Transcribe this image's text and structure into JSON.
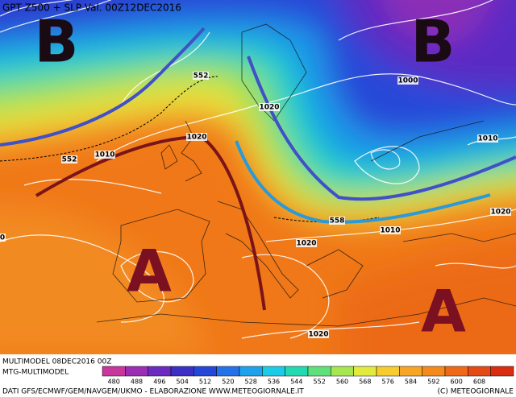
{
  "header": {
    "title": "GPT Z500 + SLP Val. 00Z12DEC2016"
  },
  "centers": [
    "B",
    "B",
    "A",
    "A"
  ],
  "contour_labels": [
    "552",
    "1000",
    "1020",
    "1010",
    "552",
    "1020",
    "1010",
    "1020",
    "1010",
    "558",
    "1020",
    "1020",
    "0"
  ],
  "footer": {
    "run": "MULTIMODEL 08DEC2016 00Z",
    "model": "MTG-MULTIMODEL",
    "sources": "DATI GFS/ECMWF/GEM/NAVGEM/UKMO - ELABORAZIONE WWW.METEOGIORNALE.IT",
    "copyright": "(C) METEOGIORNALE"
  },
  "colorbar": {
    "ticks": [
      480,
      488,
      496,
      504,
      512,
      520,
      528,
      536,
      544,
      552,
      560,
      568,
      576,
      584,
      592,
      600,
      608
    ],
    "colors": [
      "#c8379c",
      "#9b2fb4",
      "#6a2cc0",
      "#3b2fc4",
      "#2547d8",
      "#2472e8",
      "#1ea2ee",
      "#1ccbe8",
      "#22d9b0",
      "#5ee07a",
      "#a6e650",
      "#e2ea3e",
      "#f6cc2e",
      "#f6a624",
      "#f48a1c",
      "#ee6a18",
      "#e64a14",
      "#d92c10"
    ]
  }
}
